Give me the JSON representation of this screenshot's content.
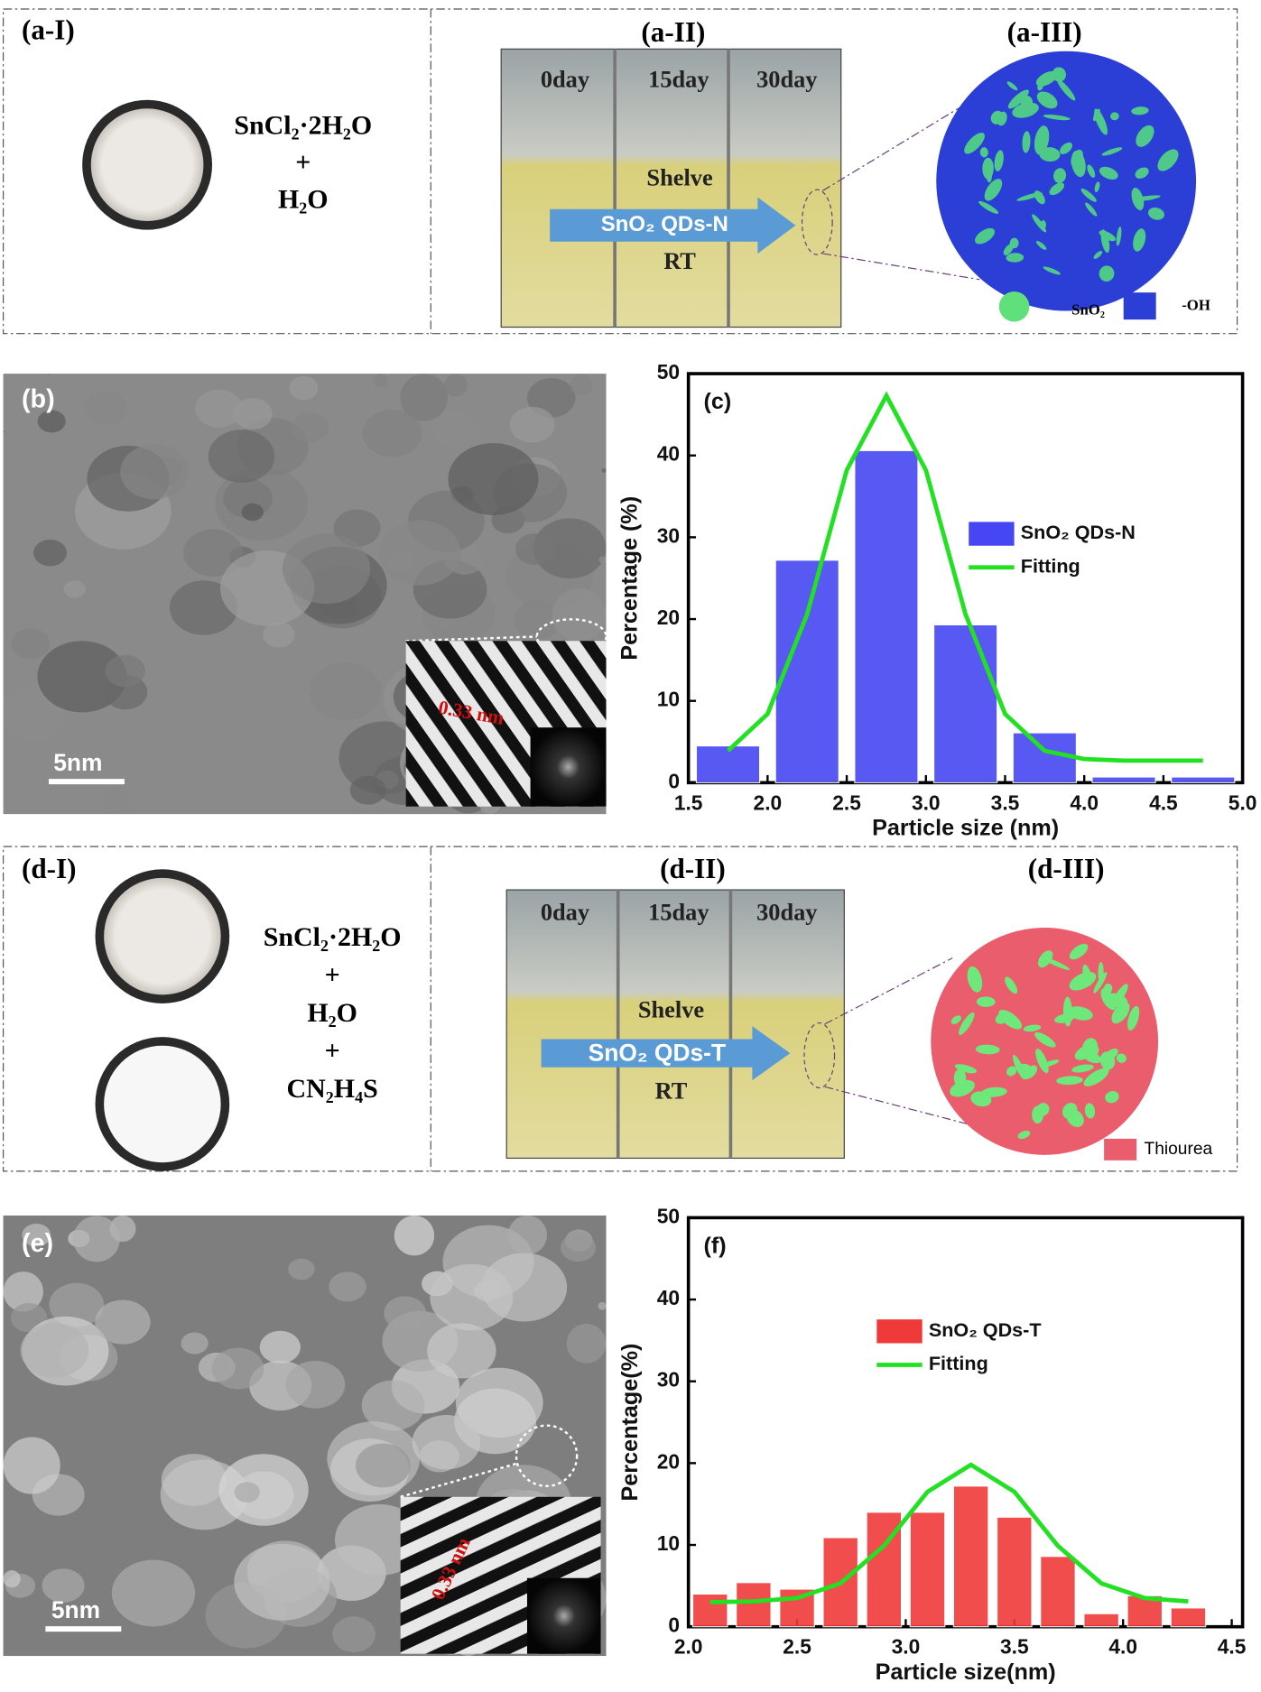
{
  "panel_a": {
    "label_1": "(a-I)",
    "label_2": "(a-II)",
    "label_3": "(a-III)",
    "formula": [
      "SnCl₂·2H₂O",
      "+",
      "H₂O"
    ],
    "days": [
      "0day",
      "15day",
      "30day"
    ],
    "shelve": "Shelve",
    "arrow": "SnO₂ QDs-N",
    "rt": "RT",
    "legend": [
      "SnO₂",
      "-OH"
    ]
  },
  "panel_b": {
    "label": "(b)",
    "scale_bar": "5nm",
    "spacing": "0.33 nm"
  },
  "panel_d": {
    "label_1": "(d-I)",
    "label_2": "(d-II)",
    "label_3": "(d-III)",
    "formula": [
      "SnCl₂·2H₂O",
      "+",
      "H₂O",
      "+",
      "CN₂H₄S"
    ],
    "days": [
      "0day",
      "15day",
      "30day"
    ],
    "shelve": "Shelve",
    "arrow": "SnO₂ QDs-T",
    "rt": "RT",
    "legend": [
      "Thiourea"
    ]
  },
  "panel_e": {
    "label": "(e)",
    "scale_bar": "5nm",
    "spacing": "0.33 nm"
  },
  "chart_data": [
    {
      "type": "bar",
      "title": "(c)",
      "x_label": "Particle size (nm)",
      "y_label": "Percentage (%)",
      "x": [
        1.75,
        2.25,
        2.75,
        3.25,
        3.75,
        4.25,
        4.75
      ],
      "series": [
        {
          "name": "SnO₂ QDs-N",
          "color": "#4646f2",
          "values": [
            4.5,
            27.2,
            40.6,
            19.3,
            6.1,
            0.7,
            0.7
          ]
        },
        {
          "name": "Fitting",
          "type": "line",
          "color": "#22e022",
          "x": [
            1.75,
            2,
            2.25,
            2.5,
            2.75,
            3,
            3.25,
            3.5,
            3.75,
            4,
            4.25,
            4.5,
            4.75
          ],
          "values": [
            3.9,
            8.4,
            20.6,
            38.2,
            47.3,
            38.2,
            20.6,
            8.4,
            3.9,
            2.9,
            2.7,
            2.7,
            2.7
          ]
        }
      ],
      "xlim": [
        1.5,
        5.0
      ],
      "xticks": [
        1.5,
        {
          "value": 2,
          "label": "2.0"
        },
        2.5,
        {
          "value": 3,
          "label": "3.0"
        },
        3.5,
        {
          "value": 4,
          "label": "4.0"
        },
        4.5,
        {
          "value": 5,
          "label": "5.0"
        }
      ],
      "ylim": [
        0,
        50
      ],
      "yticks": [
        0,
        10,
        20,
        30,
        40,
        50
      ]
    },
    {
      "type": "bar",
      "title": "(f)",
      "x_label": "Particle size(nm)",
      "y_label": "Percentage(%)",
      "x": [
        2.1,
        2.3,
        2.5,
        2.7,
        2.9,
        3.1,
        3.3,
        3.5,
        3.7,
        3.9,
        4.1,
        4.3
      ],
      "series": [
        {
          "name": "SnO₂ QDs-T",
          "color": "#f03a3a",
          "values": [
            4.0,
            5.4,
            4.6,
            10.9,
            14.0,
            14.0,
            17.2,
            13.4,
            8.6,
            1.6,
            3.8,
            2.3
          ]
        },
        {
          "name": "Fitting",
          "type": "line",
          "color": "#22e022",
          "x": [
            2.1,
            2.3,
            2.5,
            2.7,
            2.9,
            3.1,
            3.3,
            3.5,
            3.7,
            3.9,
            4.1,
            4.3
          ],
          "values": [
            3.0,
            3.1,
            3.5,
            5.3,
            9.9,
            16.5,
            19.8,
            16.5,
            9.9,
            5.3,
            3.5,
            3.1
          ]
        }
      ],
      "xlim": [
        2.0,
        4.55
      ],
      "xticks": [
        {
          "value": 2,
          "label": "2.0"
        },
        2.5,
        {
          "value": 3,
          "label": "3.0"
        },
        3.5,
        {
          "value": 4,
          "label": "4.0"
        },
        4.5
      ],
      "ylim": [
        0,
        50
      ],
      "yticks": [
        0,
        10,
        20,
        30,
        40,
        50
      ]
    }
  ]
}
